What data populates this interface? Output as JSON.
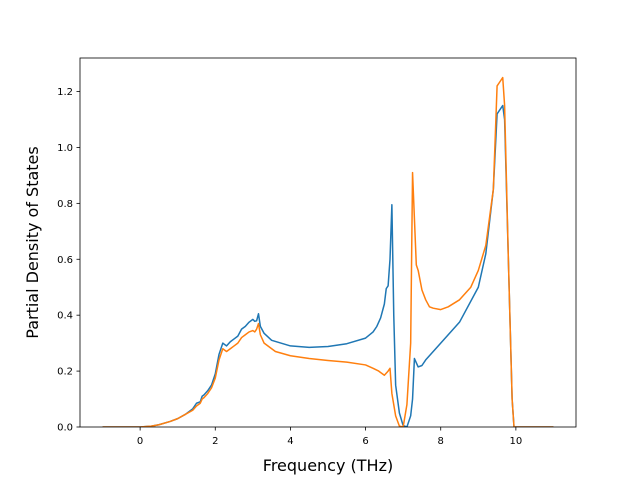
{
  "chart_data": {
    "type": "line",
    "title": "",
    "xlabel": "Frequency (THz)",
    "ylabel": "Partial Density of States",
    "xlim": [
      -1.6,
      11.6
    ],
    "ylim": [
      0.0,
      1.32
    ],
    "grid": false,
    "xticks": [
      0,
      2,
      4,
      6,
      8,
      10
    ],
    "xtick_labels": [
      "0",
      "2",
      "4",
      "6",
      "8",
      "10"
    ],
    "yticks": [
      0.0,
      0.2,
      0.4,
      0.6,
      0.8,
      1.0,
      1.2
    ],
    "ytick_labels": [
      "0.0",
      "0.2",
      "0.4",
      "0.6",
      "0.8",
      "1.0",
      "1.2"
    ],
    "series": [
      {
        "color": "#1f77b4",
        "points": [
          [
            -1.0,
            0.0
          ],
          [
            0.0,
            0.0
          ],
          [
            0.3,
            0.003
          ],
          [
            0.5,
            0.008
          ],
          [
            0.8,
            0.02
          ],
          [
            1.0,
            0.03
          ],
          [
            1.2,
            0.045
          ],
          [
            1.4,
            0.065
          ],
          [
            1.5,
            0.085
          ],
          [
            1.6,
            0.09
          ],
          [
            1.65,
            0.11
          ],
          [
            1.7,
            0.115
          ],
          [
            1.8,
            0.13
          ],
          [
            1.9,
            0.15
          ],
          [
            2.0,
            0.19
          ],
          [
            2.1,
            0.26
          ],
          [
            2.2,
            0.3
          ],
          [
            2.3,
            0.29
          ],
          [
            2.4,
            0.305
          ],
          [
            2.5,
            0.315
          ],
          [
            2.6,
            0.325
          ],
          [
            2.7,
            0.35
          ],
          [
            2.8,
            0.36
          ],
          [
            2.9,
            0.375
          ],
          [
            3.0,
            0.385
          ],
          [
            3.05,
            0.378
          ],
          [
            3.1,
            0.38
          ],
          [
            3.15,
            0.405
          ],
          [
            3.2,
            0.36
          ],
          [
            3.3,
            0.335
          ],
          [
            3.5,
            0.31
          ],
          [
            4.0,
            0.29
          ],
          [
            4.5,
            0.285
          ],
          [
            5.0,
            0.288
          ],
          [
            5.5,
            0.298
          ],
          [
            6.0,
            0.318
          ],
          [
            6.2,
            0.34
          ],
          [
            6.3,
            0.36
          ],
          [
            6.4,
            0.39
          ],
          [
            6.5,
            0.44
          ],
          [
            6.55,
            0.495
          ],
          [
            6.6,
            0.505
          ],
          [
            6.65,
            0.6
          ],
          [
            6.7,
            0.795
          ],
          [
            6.75,
            0.4
          ],
          [
            6.8,
            0.15
          ],
          [
            6.9,
            0.05
          ],
          [
            7.0,
            0.005
          ],
          [
            7.1,
            0.0
          ],
          [
            7.2,
            0.04
          ],
          [
            7.25,
            0.1
          ],
          [
            7.3,
            0.245
          ],
          [
            7.4,
            0.215
          ],
          [
            7.5,
            0.22
          ],
          [
            7.6,
            0.24
          ],
          [
            8.0,
            0.3
          ],
          [
            8.5,
            0.375
          ],
          [
            9.0,
            0.5
          ],
          [
            9.2,
            0.62
          ],
          [
            9.4,
            0.85
          ],
          [
            9.5,
            1.12
          ],
          [
            9.6,
            1.14
          ],
          [
            9.65,
            1.15
          ],
          [
            9.7,
            1.1
          ],
          [
            9.8,
            0.6
          ],
          [
            9.9,
            0.1
          ],
          [
            9.95,
            0.0
          ],
          [
            11.0,
            0.0
          ]
        ]
      },
      {
        "color": "#ff7f0e",
        "points": [
          [
            -1.0,
            0.0
          ],
          [
            0.0,
            0.0
          ],
          [
            0.3,
            0.003
          ],
          [
            0.5,
            0.008
          ],
          [
            0.8,
            0.02
          ],
          [
            1.0,
            0.03
          ],
          [
            1.2,
            0.045
          ],
          [
            1.4,
            0.06
          ],
          [
            1.5,
            0.075
          ],
          [
            1.6,
            0.085
          ],
          [
            1.65,
            0.1
          ],
          [
            1.7,
            0.105
          ],
          [
            1.8,
            0.12
          ],
          [
            1.9,
            0.14
          ],
          [
            2.0,
            0.175
          ],
          [
            2.1,
            0.24
          ],
          [
            2.2,
            0.28
          ],
          [
            2.3,
            0.27
          ],
          [
            2.4,
            0.28
          ],
          [
            2.5,
            0.29
          ],
          [
            2.6,
            0.3
          ],
          [
            2.7,
            0.32
          ],
          [
            2.8,
            0.33
          ],
          [
            2.9,
            0.34
          ],
          [
            3.0,
            0.345
          ],
          [
            3.05,
            0.34
          ],
          [
            3.1,
            0.35
          ],
          [
            3.15,
            0.37
          ],
          [
            3.2,
            0.33
          ],
          [
            3.3,
            0.3
          ],
          [
            3.6,
            0.27
          ],
          [
            4.0,
            0.255
          ],
          [
            4.5,
            0.245
          ],
          [
            5.0,
            0.238
          ],
          [
            5.5,
            0.232
          ],
          [
            6.0,
            0.222
          ],
          [
            6.2,
            0.21
          ],
          [
            6.35,
            0.2
          ],
          [
            6.5,
            0.185
          ],
          [
            6.6,
            0.2
          ],
          [
            6.65,
            0.21
          ],
          [
            6.7,
            0.12
          ],
          [
            6.8,
            0.04
          ],
          [
            6.9,
            0.003
          ],
          [
            7.0,
            0.0
          ],
          [
            7.1,
            0.08
          ],
          [
            7.2,
            0.3
          ],
          [
            7.25,
            0.91
          ],
          [
            7.35,
            0.58
          ],
          [
            7.4,
            0.56
          ],
          [
            7.5,
            0.49
          ],
          [
            7.6,
            0.455
          ],
          [
            7.7,
            0.43
          ],
          [
            7.8,
            0.425
          ],
          [
            8.0,
            0.42
          ],
          [
            8.2,
            0.43
          ],
          [
            8.5,
            0.455
          ],
          [
            8.8,
            0.5
          ],
          [
            9.0,
            0.56
          ],
          [
            9.2,
            0.65
          ],
          [
            9.4,
            0.85
          ],
          [
            9.5,
            1.22
          ],
          [
            9.6,
            1.24
          ],
          [
            9.65,
            1.25
          ],
          [
            9.7,
            1.15
          ],
          [
            9.8,
            0.6
          ],
          [
            9.9,
            0.1
          ],
          [
            9.95,
            0.0
          ],
          [
            11.0,
            0.0
          ]
        ]
      }
    ]
  }
}
